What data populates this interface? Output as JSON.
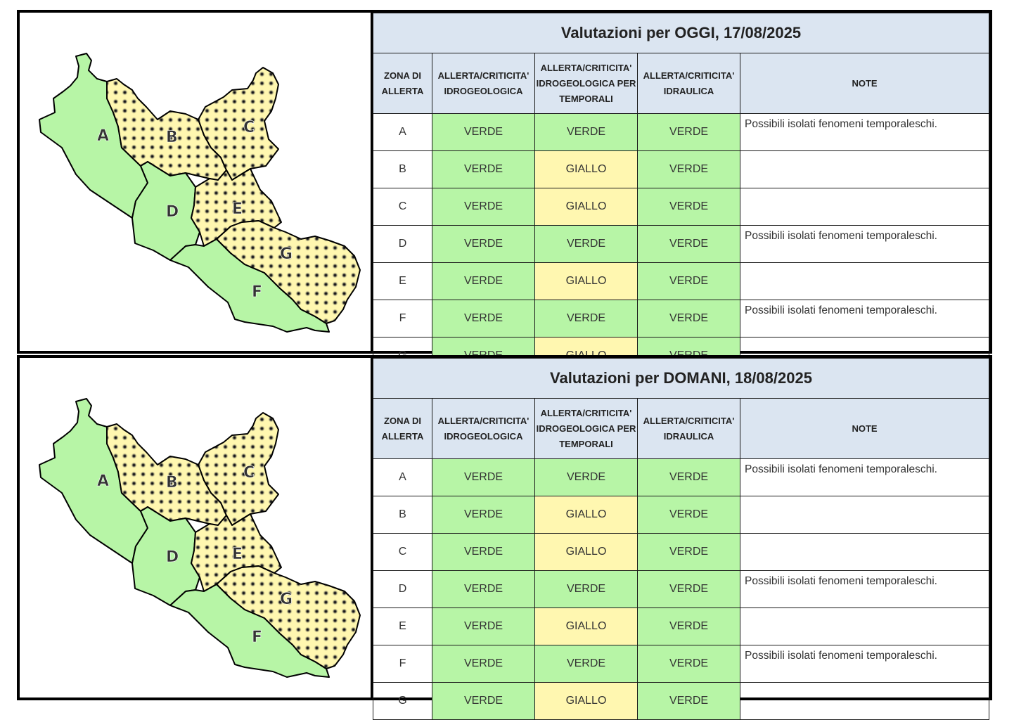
{
  "colors": {
    "green": "#b7f5a6",
    "yellow": "#fff7b0",
    "header": "#dbe5f1"
  },
  "columns": [
    "ZONA DI ALLERTA",
    "ALLERTA/CRITICITA' IDROGEOLOGICA",
    "ALLERTA/CRITICITA' IDROGEOLOGICA PER TEMPORALI",
    "ALLERTA/CRITICITA' IDRAULICA",
    "NOTE"
  ],
  "map_zones": [
    "A",
    "B",
    "C",
    "D",
    "E",
    "F",
    "G"
  ],
  "today": {
    "title": "Valutazioni per OGGI, 17/08/2025",
    "rows": [
      {
        "zone": "A",
        "idro": "VERDE",
        "temp": "VERDE",
        "idra": "VERDE",
        "note": "Possibili isolati fenomeni temporaleschi."
      },
      {
        "zone": "B",
        "idro": "VERDE",
        "temp": "GIALLO",
        "idra": "VERDE",
        "note": ""
      },
      {
        "zone": "C",
        "idro": "VERDE",
        "temp": "GIALLO",
        "idra": "VERDE",
        "note": ""
      },
      {
        "zone": "D",
        "idro": "VERDE",
        "temp": "VERDE",
        "idra": "VERDE",
        "note": "Possibili isolati fenomeni temporaleschi."
      },
      {
        "zone": "E",
        "idro": "VERDE",
        "temp": "GIALLO",
        "idra": "VERDE",
        "note": ""
      },
      {
        "zone": "F",
        "idro": "VERDE",
        "temp": "VERDE",
        "idra": "VERDE",
        "note": "Possibili isolati fenomeni temporaleschi."
      },
      {
        "zone": "G",
        "idro": "VERDE",
        "temp": "GIALLO",
        "idra": "VERDE",
        "note": ""
      }
    ]
  },
  "tomorrow": {
    "title": "Valutazioni per DOMANI, 18/08/2025",
    "rows": [
      {
        "zone": "A",
        "idro": "VERDE",
        "temp": "VERDE",
        "idra": "VERDE",
        "note": "Possibili isolati fenomeni temporaleschi."
      },
      {
        "zone": "B",
        "idro": "VERDE",
        "temp": "GIALLO",
        "idra": "VERDE",
        "note": ""
      },
      {
        "zone": "C",
        "idro": "VERDE",
        "temp": "GIALLO",
        "idra": "VERDE",
        "note": ""
      },
      {
        "zone": "D",
        "idro": "VERDE",
        "temp": "VERDE",
        "idra": "VERDE",
        "note": "Possibili isolati fenomeni temporaleschi."
      },
      {
        "zone": "E",
        "idro": "VERDE",
        "temp": "GIALLO",
        "idra": "VERDE",
        "note": ""
      },
      {
        "zone": "F",
        "idro": "VERDE",
        "temp": "VERDE",
        "idra": "VERDE",
        "note": "Possibili isolati fenomeni temporaleschi."
      },
      {
        "zone": "G",
        "idro": "VERDE",
        "temp": "GIALLO",
        "idra": "VERDE",
        "note": ""
      }
    ]
  }
}
